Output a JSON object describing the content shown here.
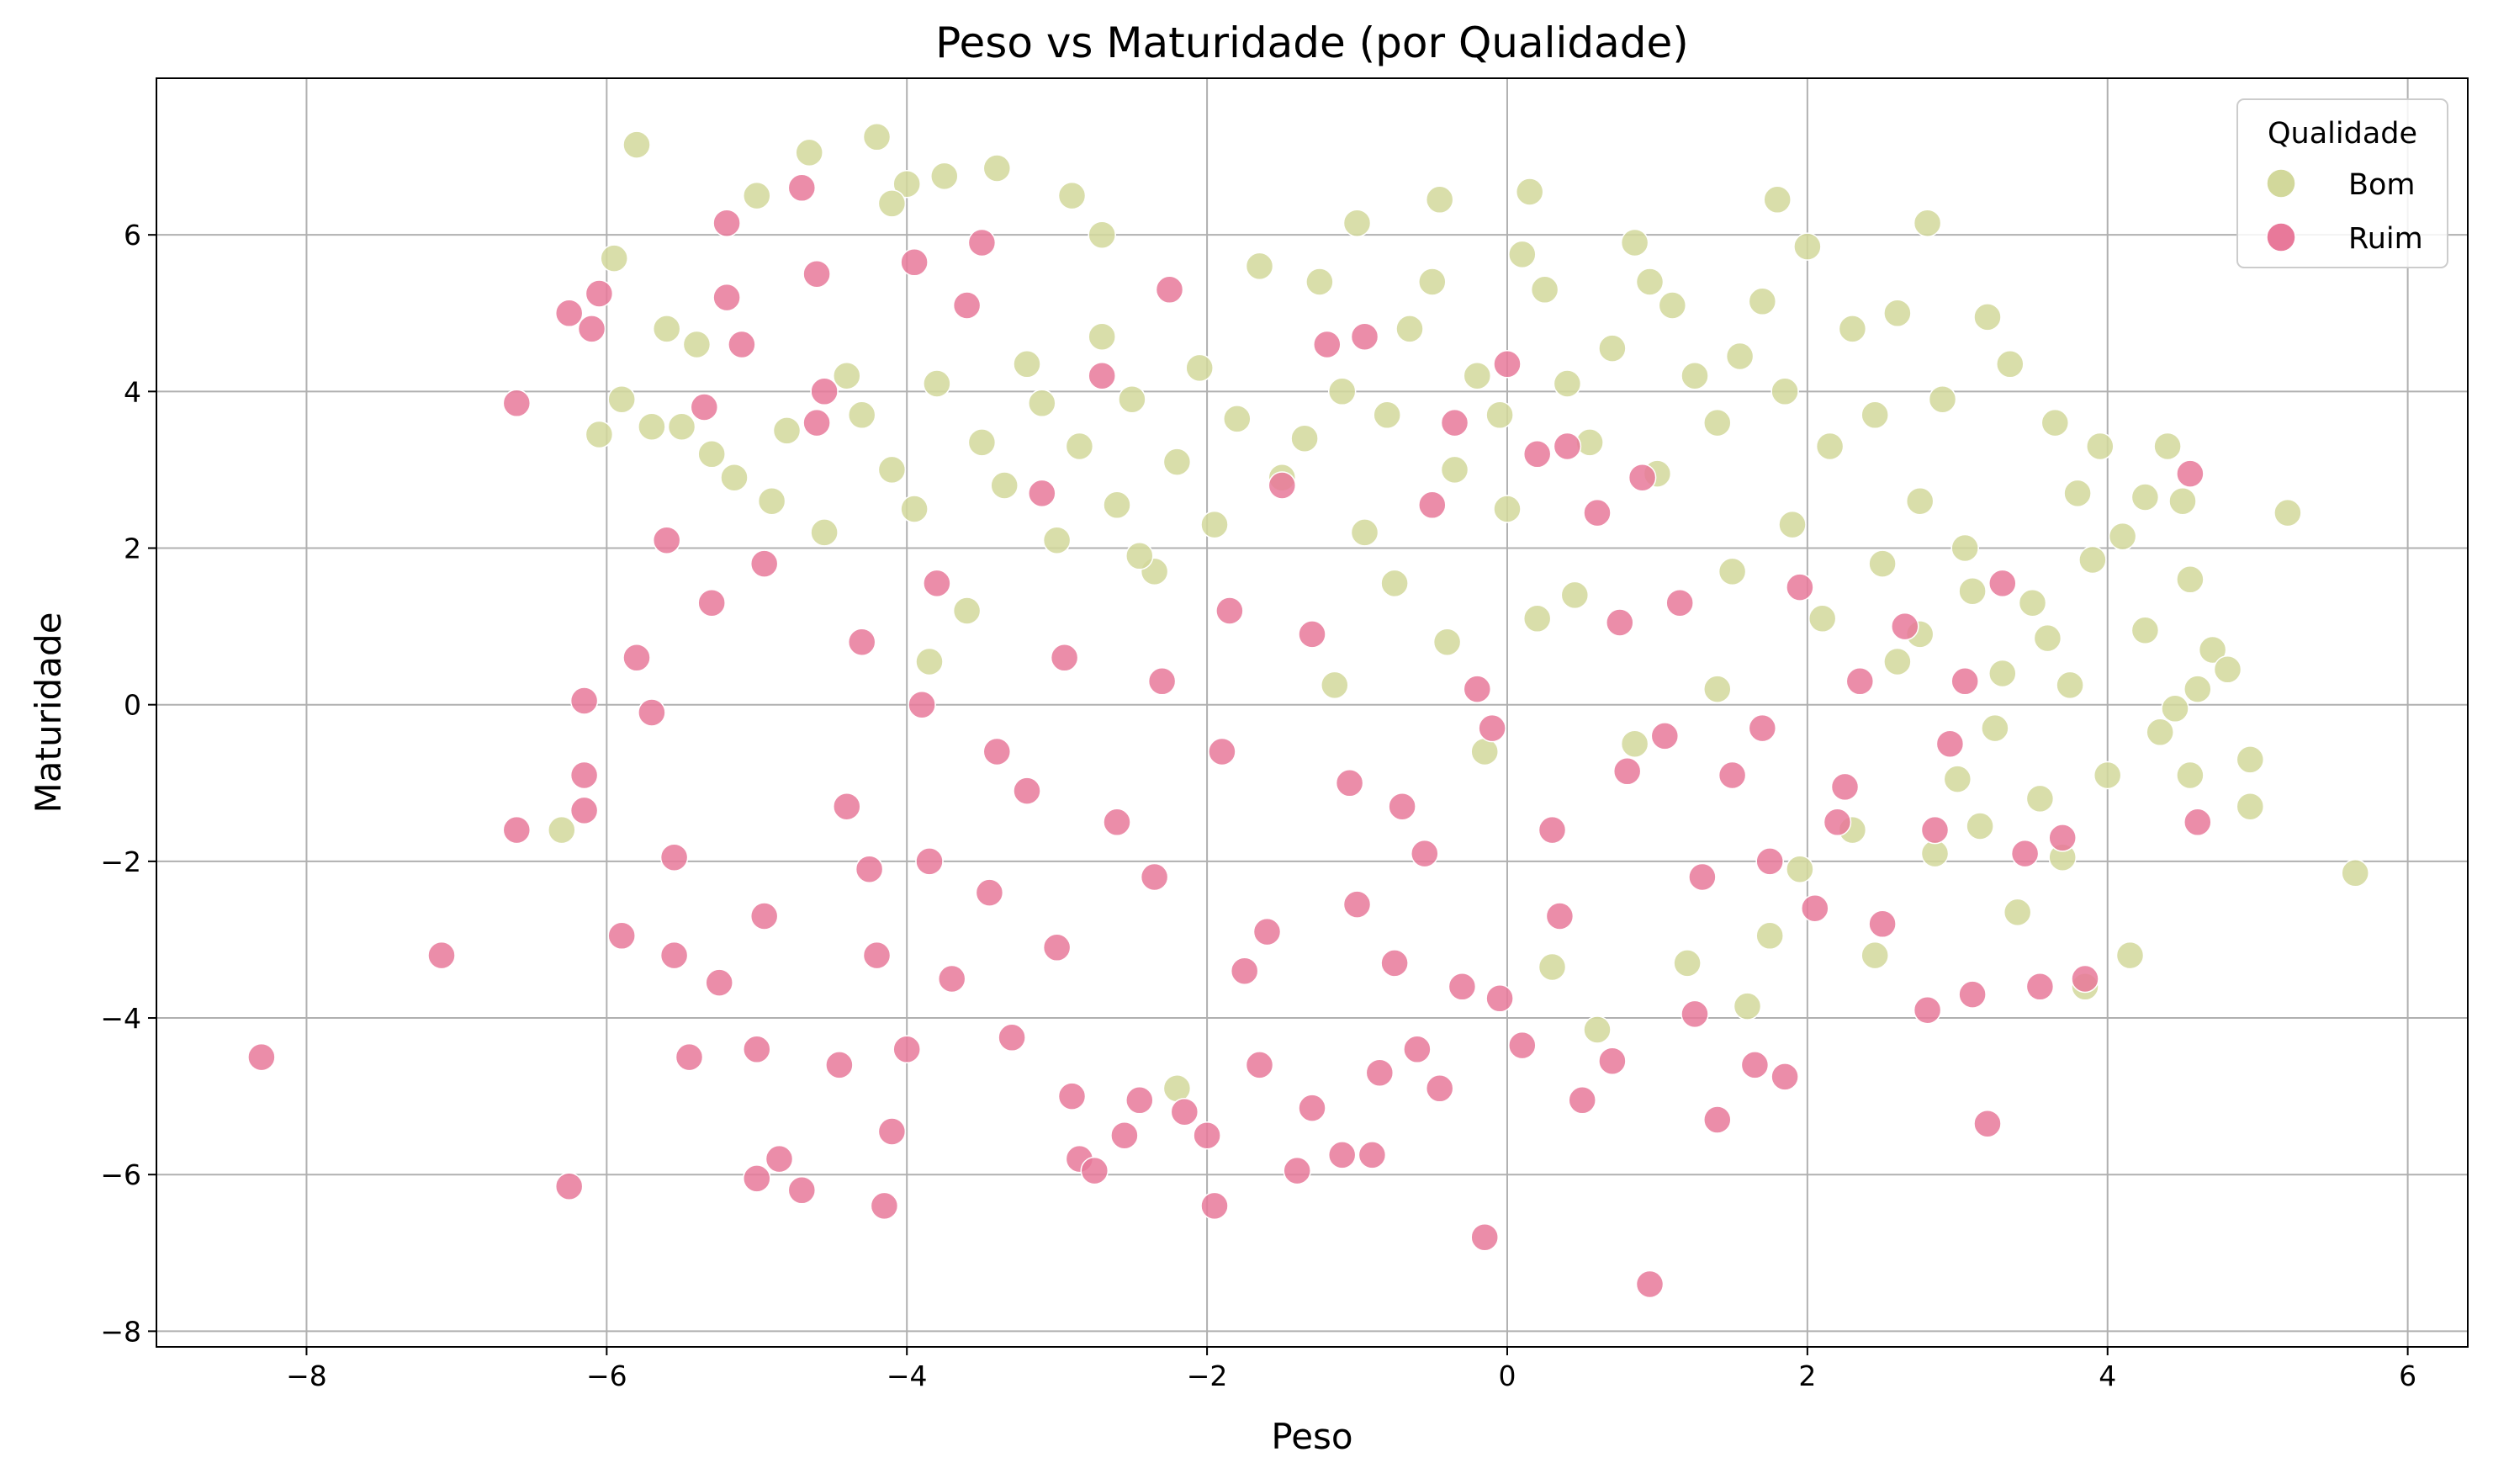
{
  "chart_data": {
    "type": "scatter",
    "title": "Peso vs Maturidade (por Qualidade)",
    "xlabel": "Peso",
    "ylabel": "Maturidade",
    "xlim": [
      -9.0,
      6.4
    ],
    "ylim": [
      -8.2,
      8.0
    ],
    "x_ticks": [
      -8,
      -6,
      -4,
      -2,
      0,
      2,
      4,
      6
    ],
    "x_tick_labels": [
      "−8",
      "−6",
      "−4",
      "−2",
      "0",
      "2",
      "4",
      "6"
    ],
    "y_ticks": [
      -8,
      -6,
      -4,
      -2,
      0,
      2,
      4,
      6
    ],
    "y_tick_labels": [
      "−8",
      "−6",
      "−4",
      "−2",
      "0",
      "2",
      "4",
      "6"
    ],
    "grid": true,
    "legend": {
      "title": "Qualidade",
      "placement": "top-right",
      "entries": [
        "Bom",
        "Ruim"
      ]
    },
    "series": [
      {
        "name": "Bom",
        "color": "#d2d89b",
        "points": [
          [
            -5.8,
            7.15
          ],
          [
            -4.2,
            7.25
          ],
          [
            -4.65,
            7.05
          ],
          [
            -4.0,
            6.65
          ],
          [
            -3.4,
            6.85
          ],
          [
            -2.9,
            6.5
          ],
          [
            -4.1,
            6.4
          ],
          [
            -3.75,
            6.75
          ],
          [
            -2.7,
            6.0
          ],
          [
            -5.0,
            6.5
          ],
          [
            -1.0,
            6.15
          ],
          [
            -0.45,
            6.45
          ],
          [
            0.15,
            6.55
          ],
          [
            1.8,
            6.45
          ],
          [
            2.8,
            6.15
          ],
          [
            -5.95,
            5.7
          ],
          [
            -5.6,
            4.8
          ],
          [
            -5.4,
            4.6
          ],
          [
            -5.7,
            3.55
          ],
          [
            -5.9,
            3.9
          ],
          [
            -6.05,
            3.45
          ],
          [
            -5.5,
            3.55
          ],
          [
            -5.3,
            3.2
          ],
          [
            -5.15,
            2.9
          ],
          [
            -4.8,
            3.5
          ],
          [
            -4.9,
            2.6
          ],
          [
            -4.4,
            4.2
          ],
          [
            -4.55,
            2.2
          ],
          [
            -4.3,
            3.7
          ],
          [
            -4.1,
            3.0
          ],
          [
            -3.95,
            2.5
          ],
          [
            -3.8,
            4.1
          ],
          [
            -3.6,
            1.2
          ],
          [
            -3.5,
            3.35
          ],
          [
            -3.35,
            2.8
          ],
          [
            -3.2,
            4.35
          ],
          [
            -3.1,
            3.85
          ],
          [
            -3.0,
            2.1
          ],
          [
            -2.85,
            3.3
          ],
          [
            -2.7,
            4.7
          ],
          [
            -2.6,
            2.55
          ],
          [
            -2.5,
            3.9
          ],
          [
            -2.35,
            1.7
          ],
          [
            -2.2,
            3.1
          ],
          [
            -2.05,
            4.3
          ],
          [
            -1.95,
            2.3
          ],
          [
            -1.8,
            3.65
          ],
          [
            -1.65,
            5.6
          ],
          [
            -1.5,
            2.9
          ],
          [
            -1.35,
            3.4
          ],
          [
            -1.25,
            5.4
          ],
          [
            -1.1,
            4.0
          ],
          [
            -0.95,
            2.2
          ],
          [
            -0.8,
            3.7
          ],
          [
            -0.65,
            4.8
          ],
          [
            -0.5,
            5.4
          ],
          [
            -0.35,
            3.0
          ],
          [
            -0.2,
            4.2
          ],
          [
            -0.05,
            3.7
          ],
          [
            0.1,
            5.75
          ],
          [
            0.25,
            5.3
          ],
          [
            0.4,
            4.1
          ],
          [
            0.55,
            3.35
          ],
          [
            0.7,
            4.55
          ],
          [
            0.85,
            5.9
          ],
          [
            0.95,
            5.4
          ],
          [
            1.1,
            5.1
          ],
          [
            1.25,
            4.2
          ],
          [
            1.4,
            3.6
          ],
          [
            1.55,
            4.45
          ],
          [
            1.7,
            5.15
          ],
          [
            1.85,
            4.0
          ],
          [
            2.0,
            5.85
          ],
          [
            2.15,
            3.3
          ],
          [
            2.3,
            4.8
          ],
          [
            2.45,
            3.7
          ],
          [
            2.6,
            5.0
          ],
          [
            2.75,
            2.6
          ],
          [
            2.9,
            3.9
          ],
          [
            3.05,
            2.0
          ],
          [
            3.2,
            4.95
          ],
          [
            3.35,
            4.35
          ],
          [
            3.5,
            1.3
          ],
          [
            3.65,
            3.6
          ],
          [
            3.8,
            2.7
          ],
          [
            3.95,
            3.3
          ],
          [
            4.1,
            2.15
          ],
          [
            4.25,
            2.65
          ],
          [
            4.4,
            3.3
          ],
          [
            4.5,
            2.6
          ],
          [
            4.55,
            1.6
          ],
          [
            4.7,
            0.7
          ],
          [
            4.8,
            0.45
          ],
          [
            4.95,
            -0.7
          ],
          [
            5.2,
            2.45
          ],
          [
            5.65,
            -2.15
          ],
          [
            4.55,
            -0.9
          ],
          [
            4.35,
            -0.35
          ],
          [
            4.15,
            -3.2
          ],
          [
            3.85,
            -3.6
          ],
          [
            4.0,
            -0.9
          ],
          [
            3.7,
            -1.95
          ],
          [
            3.4,
            -2.65
          ],
          [
            3.6,
            0.85
          ],
          [
            3.25,
            -0.3
          ],
          [
            3.0,
            -0.95
          ],
          [
            2.85,
            -1.9
          ],
          [
            2.6,
            0.55
          ],
          [
            2.45,
            -3.2
          ],
          [
            2.3,
            -1.6
          ],
          [
            2.1,
            1.1
          ],
          [
            1.95,
            -2.1
          ],
          [
            1.75,
            -2.95
          ],
          [
            1.6,
            -3.85
          ],
          [
            1.4,
            0.2
          ],
          [
            1.2,
            -3.3
          ],
          [
            0.85,
            -0.5
          ],
          [
            0.6,
            -4.15
          ],
          [
            0.45,
            1.4
          ],
          [
            0.3,
            -3.35
          ],
          [
            -0.15,
            -0.6
          ],
          [
            -2.2,
            -4.9
          ],
          [
            -6.3,
            -1.6
          ],
          [
            -3.85,
            0.55
          ],
          [
            -2.45,
            1.9
          ],
          [
            -1.15,
            0.25
          ],
          [
            -0.75,
            1.55
          ],
          [
            -0.4,
            0.8
          ],
          [
            0.0,
            2.5
          ],
          [
            0.2,
            1.1
          ],
          [
            1.0,
            2.95
          ],
          [
            1.5,
            1.7
          ],
          [
            1.9,
            2.3
          ],
          [
            2.5,
            1.8
          ],
          [
            2.75,
            0.9
          ],
          [
            3.1,
            1.45
          ],
          [
            3.3,
            0.4
          ],
          [
            3.55,
            -1.2
          ],
          [
            3.75,
            0.25
          ],
          [
            3.9,
            1.85
          ],
          [
            4.25,
            0.95
          ],
          [
            4.45,
            -0.05
          ],
          [
            4.6,
            0.2
          ],
          [
            4.95,
            -1.3
          ],
          [
            3.15,
            -1.55
          ]
        ]
      },
      {
        "name": "Ruim",
        "color": "#e8799a",
        "points": [
          [
            -8.3,
            -4.5
          ],
          [
            -7.1,
            -3.2
          ],
          [
            -6.6,
            3.85
          ],
          [
            -6.6,
            -1.6
          ],
          [
            -6.25,
            -6.15
          ],
          [
            -6.25,
            5.0
          ],
          [
            -6.1,
            4.8
          ],
          [
            -6.05,
            5.25
          ],
          [
            -6.15,
            0.05
          ],
          [
            -6.15,
            -0.9
          ],
          [
            -6.15,
            -1.35
          ],
          [
            -5.9,
            -2.95
          ],
          [
            -5.8,
            0.6
          ],
          [
            -5.7,
            -0.1
          ],
          [
            -5.6,
            2.1
          ],
          [
            -5.55,
            -1.95
          ],
          [
            -5.45,
            -4.5
          ],
          [
            -5.35,
            3.8
          ],
          [
            -5.3,
            1.3
          ],
          [
            -5.25,
            -3.55
          ],
          [
            -5.2,
            6.15
          ],
          [
            -5.2,
            5.2
          ],
          [
            -5.1,
            4.6
          ],
          [
            -5.0,
            -4.4
          ],
          [
            -5.0,
            -6.05
          ],
          [
            -4.95,
            1.8
          ],
          [
            -4.85,
            -5.8
          ],
          [
            -4.7,
            6.6
          ],
          [
            -4.7,
            -6.2
          ],
          [
            -4.6,
            5.5
          ],
          [
            -4.55,
            4.0
          ],
          [
            -4.45,
            -4.6
          ],
          [
            -4.4,
            -1.3
          ],
          [
            -4.3,
            0.8
          ],
          [
            -4.2,
            -3.2
          ],
          [
            -4.15,
            -6.4
          ],
          [
            -4.1,
            -5.45
          ],
          [
            -4.0,
            -4.4
          ],
          [
            -3.95,
            5.65
          ],
          [
            -3.85,
            -2.0
          ],
          [
            -3.8,
            1.55
          ],
          [
            -3.7,
            -3.5
          ],
          [
            -3.6,
            5.1
          ],
          [
            -3.5,
            5.9
          ],
          [
            -3.4,
            -0.6
          ],
          [
            -3.3,
            -4.25
          ],
          [
            -3.2,
            -1.1
          ],
          [
            -3.1,
            2.7
          ],
          [
            -3.0,
            -3.1
          ],
          [
            -2.9,
            -5.0
          ],
          [
            -2.85,
            -5.8
          ],
          [
            -2.75,
            -5.95
          ],
          [
            -2.7,
            4.2
          ],
          [
            -2.55,
            -5.5
          ],
          [
            -2.45,
            -5.05
          ],
          [
            -2.35,
            -2.2
          ],
          [
            -2.25,
            5.3
          ],
          [
            -2.15,
            -5.2
          ],
          [
            -2.0,
            -5.5
          ],
          [
            -1.95,
            -6.4
          ],
          [
            -1.85,
            1.2
          ],
          [
            -1.75,
            -3.4
          ],
          [
            -1.65,
            -4.6
          ],
          [
            -1.5,
            2.8
          ],
          [
            -1.4,
            -5.95
          ],
          [
            -1.3,
            -5.15
          ],
          [
            -1.2,
            4.6
          ],
          [
            -1.1,
            -5.75
          ],
          [
            -1.0,
            -2.55
          ],
          [
            -0.95,
            4.7
          ],
          [
            -0.9,
            -5.75
          ],
          [
            -0.85,
            -4.7
          ],
          [
            -0.75,
            -3.3
          ],
          [
            -0.7,
            -1.3
          ],
          [
            -0.6,
            -4.4
          ],
          [
            -0.5,
            2.55
          ],
          [
            -0.45,
            -4.9
          ],
          [
            -0.35,
            3.6
          ],
          [
            -0.3,
            -3.6
          ],
          [
            -0.2,
            0.2
          ],
          [
            -0.15,
            -6.8
          ],
          [
            -0.05,
            -3.75
          ],
          [
            0.0,
            4.35
          ],
          [
            0.1,
            -4.35
          ],
          [
            0.2,
            3.2
          ],
          [
            0.3,
            -1.6
          ],
          [
            0.4,
            3.3
          ],
          [
            0.5,
            -5.05
          ],
          [
            0.6,
            2.45
          ],
          [
            0.7,
            -4.55
          ],
          [
            0.8,
            -0.85
          ],
          [
            0.9,
            2.9
          ],
          [
            0.95,
            -7.4
          ],
          [
            1.05,
            -0.4
          ],
          [
            1.15,
            1.3
          ],
          [
            1.25,
            -3.95
          ],
          [
            1.4,
            -5.3
          ],
          [
            1.5,
            -0.9
          ],
          [
            1.65,
            -4.6
          ],
          [
            1.75,
            -2.0
          ],
          [
            1.85,
            -4.75
          ],
          [
            1.95,
            1.5
          ],
          [
            2.05,
            -2.6
          ],
          [
            2.2,
            -1.5
          ],
          [
            2.35,
            0.3
          ],
          [
            2.5,
            -2.8
          ],
          [
            2.65,
            1.0
          ],
          [
            2.8,
            -3.9
          ],
          [
            2.95,
            -0.5
          ],
          [
            3.1,
            -3.7
          ],
          [
            3.2,
            -5.35
          ],
          [
            3.3,
            1.55
          ],
          [
            3.45,
            -1.9
          ],
          [
            3.55,
            -3.6
          ],
          [
            3.7,
            -1.7
          ],
          [
            3.85,
            -3.5
          ],
          [
            4.55,
            2.95
          ],
          [
            4.6,
            -1.5
          ],
          [
            -4.6,
            3.6
          ],
          [
            -3.9,
            0.0
          ],
          [
            -3.45,
            -2.4
          ],
          [
            -2.95,
            0.6
          ],
          [
            -2.6,
            -1.5
          ],
          [
            -2.3,
            0.3
          ],
          [
            -1.9,
            -0.6
          ],
          [
            -1.6,
            -2.9
          ],
          [
            -1.3,
            0.9
          ],
          [
            -1.05,
            -1.0
          ],
          [
            -0.55,
            -1.9
          ],
          [
            -0.1,
            -0.3
          ],
          [
            0.35,
            -2.7
          ],
          [
            0.75,
            1.05
          ],
          [
            1.3,
            -2.2
          ],
          [
            1.7,
            -0.3
          ],
          [
            2.25,
            -1.05
          ],
          [
            2.85,
            -1.6
          ],
          [
            3.05,
            0.3
          ],
          [
            -5.55,
            -3.2
          ],
          [
            -4.95,
            -2.7
          ],
          [
            -4.25,
            -2.1
          ]
        ]
      }
    ]
  }
}
